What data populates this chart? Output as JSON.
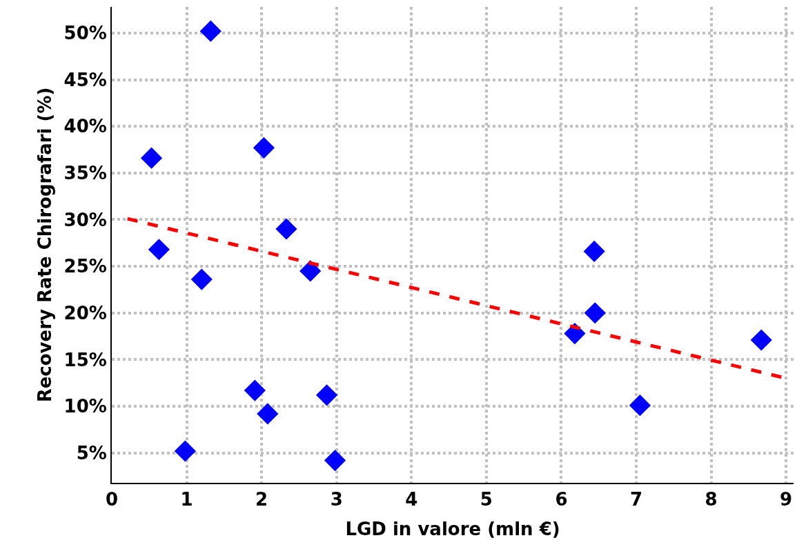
{
  "chart_data": {
    "type": "scatter",
    "xlabel": "LGD in valore (mln €)",
    "ylabel": "Recovery Rate Chirografari (%)",
    "series": [
      {
        "color": "#0000ff",
        "marker": "diamond",
        "x": [
          1.32,
          0.53,
          2.03,
          0.63,
          2.33,
          1.2,
          2.65,
          6.44,
          6.45,
          6.18,
          8.67,
          1.91,
          2.87,
          2.08,
          7.05,
          0.98,
          2.98
        ],
        "values": [
          50.2,
          36.6,
          37.7,
          26.8,
          29.0,
          23.6,
          24.5,
          26.6,
          20.0,
          17.8,
          17.1,
          11.7,
          11.2,
          9.2,
          10.1,
          5.2,
          4.2
        ]
      },
      {
        "type": "line",
        "color": "#ff0000",
        "line_style": "dashed",
        "marker": "none",
        "x": [
          0.21,
          8.95
        ],
        "values": [
          30.1,
          13.1
        ]
      }
    ],
    "xlim": [
      0,
      9.1
    ],
    "xticks": [
      0,
      1,
      2,
      3,
      4,
      5,
      6,
      7,
      8,
      9
    ],
    "ylim": [
      1.8,
      52.8
    ],
    "yticks": [
      {
        "value": 5,
        "label": "5%"
      },
      {
        "value": 10,
        "label": "10%"
      },
      {
        "value": 15,
        "label": "15%"
      },
      {
        "value": 20,
        "label": "20%"
      },
      {
        "value": 25,
        "label": "25%"
      },
      {
        "value": 30,
        "label": "30%"
      },
      {
        "value": 35,
        "label": "35%"
      },
      {
        "value": 40,
        "label": "40%"
      },
      {
        "value": 45,
        "label": "45%"
      },
      {
        "value": 50,
        "label": "50%"
      }
    ],
    "grid": true
  }
}
